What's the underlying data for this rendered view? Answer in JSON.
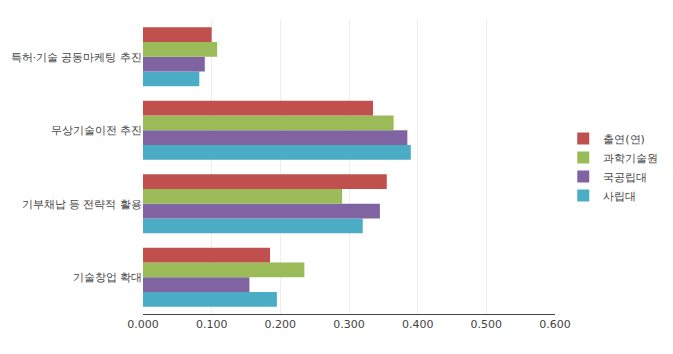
{
  "chart_data": {
    "type": "bar",
    "orientation": "horizontal",
    "categories": [
      "기술창업 확대",
      "기부채납 등 전략적 활용",
      "무상기술이전 추진",
      "특허·기술 공동마케팅 추진"
    ],
    "series": [
      {
        "name": "출연(연)",
        "color": "#C0504D",
        "values": [
          0.185,
          0.355,
          0.335,
          0.1
        ]
      },
      {
        "name": "과학기술원",
        "color": "#9BBB59",
        "values": [
          0.235,
          0.29,
          0.365,
          0.108
        ]
      },
      {
        "name": "국공립대",
        "color": "#8064A2",
        "values": [
          0.155,
          0.345,
          0.385,
          0.09
        ]
      },
      {
        "name": "사립대",
        "color": "#4BACC6",
        "values": [
          0.195,
          0.32,
          0.39,
          0.082
        ]
      }
    ],
    "xlim": [
      0,
      0.6
    ],
    "xticks": [
      {
        "value": 0,
        "label": "0.000"
      },
      {
        "value": 0.1,
        "label": "0.100"
      },
      {
        "value": 0.2,
        "label": "0.200"
      },
      {
        "value": 0.3,
        "label": "0.300"
      },
      {
        "value": 0.4,
        "label": "0.400"
      },
      {
        "value": 0.5,
        "label": "0.500"
      },
      {
        "value": 0.6,
        "label": "0.600"
      }
    ],
    "grid": true,
    "legend": "right"
  }
}
